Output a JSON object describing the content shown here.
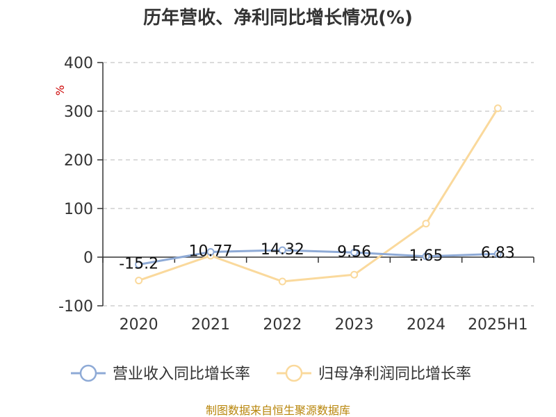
{
  "colors": {
    "revenue": "#8eaad6",
    "profit": "#fad99c",
    "source": "#b8860b",
    "unit": "#cc0000"
  },
  "chart_data": {
    "type": "line",
    "title": "历年营收、净利同比增长情况(%)",
    "ylabel": "%",
    "categories": [
      "2020",
      "2021",
      "2022",
      "2023",
      "2024",
      "2025H1"
    ],
    "ylim": [
      -100,
      400
    ],
    "yticks": [
      400,
      300,
      200,
      100,
      0,
      -100
    ],
    "grid": true,
    "legend_position": "bottom",
    "series": [
      {
        "name": "营业收入同比增长率",
        "values": [
          -15.2,
          10.77,
          14.32,
          9.56,
          1.65,
          6.83
        ],
        "labels": [
          "-15.2",
          "10.77",
          "14.32",
          "9.56",
          "1.65",
          "6.83"
        ]
      },
      {
        "name": "归母净利润同比增长率",
        "values": [
          -48,
          3,
          -50,
          -36,
          69,
          306
        ]
      }
    ]
  },
  "source_text": "制图数据来自恒生聚源数据库"
}
